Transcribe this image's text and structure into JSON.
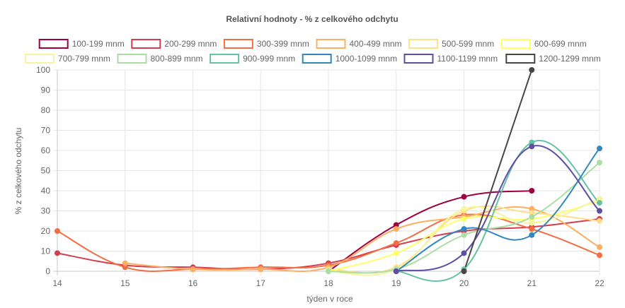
{
  "chart_data": {
    "type": "line",
    "title": "Relativní hodnoty - % z celkového odchytu",
    "xlabel": "týden v roce",
    "ylabel": "% z celkového odchytu",
    "x": [
      14,
      15,
      16,
      17,
      18,
      19,
      20,
      21,
      22
    ],
    "xlim": [
      14,
      22
    ],
    "ylim": [
      0,
      100
    ],
    "yticks": [
      0,
      10,
      20,
      30,
      40,
      50,
      60,
      70,
      80,
      90,
      100
    ],
    "grid": true,
    "legend_position": "top",
    "series": [
      {
        "name": "100-199 mnm",
        "color": "#9e0142",
        "values": [
          null,
          null,
          null,
          null,
          0,
          23,
          37,
          40,
          null
        ]
      },
      {
        "name": "200-299 mnm",
        "color": "#d53e4f",
        "values": [
          9,
          3,
          2,
          1,
          4,
          13,
          20,
          22,
          26
        ]
      },
      {
        "name": "300-399 mnm",
        "color": "#f46d43",
        "values": [
          20,
          2,
          1,
          2,
          3,
          14,
          28,
          21,
          8
        ]
      },
      {
        "name": "400-499 mnm",
        "color": "#fdae61",
        "values": [
          null,
          4,
          1,
          1,
          2,
          21,
          27,
          31,
          12
        ]
      },
      {
        "name": "500-599 mnm",
        "color": "#fee08b",
        "values": [
          null,
          null,
          null,
          null,
          1,
          2,
          30,
          29,
          25
        ]
      },
      {
        "name": "600-699 mnm",
        "color": "#ffff66",
        "values": [
          null,
          null,
          null,
          null,
          0,
          9,
          26,
          26,
          35
        ]
      },
      {
        "name": "700-799 mnm",
        "color": "#f5f5a0",
        "values": [
          null,
          null,
          null,
          null,
          0,
          1,
          31,
          24,
          36
        ]
      },
      {
        "name": "800-899 mnm",
        "color": "#abdda4",
        "values": [
          null,
          null,
          null,
          null,
          0,
          1,
          18,
          27,
          54
        ]
      },
      {
        "name": "900-999 mnm",
        "color": "#66c2a5",
        "values": [
          null,
          null,
          null,
          null,
          null,
          0,
          1,
          64,
          34
        ]
      },
      {
        "name": "1000-1099 mnm",
        "color": "#3288bd",
        "values": [
          null,
          null,
          null,
          null,
          null,
          0,
          21,
          18,
          61
        ]
      },
      {
        "name": "1100-1199 mnm",
        "color": "#5e4fa2",
        "values": [
          null,
          null,
          null,
          null,
          null,
          0,
          9,
          62,
          30
        ]
      },
      {
        "name": "1200-1299 mnm",
        "color": "#4d4444",
        "values": [
          null,
          null,
          null,
          null,
          null,
          null,
          0,
          100,
          null
        ]
      }
    ]
  }
}
